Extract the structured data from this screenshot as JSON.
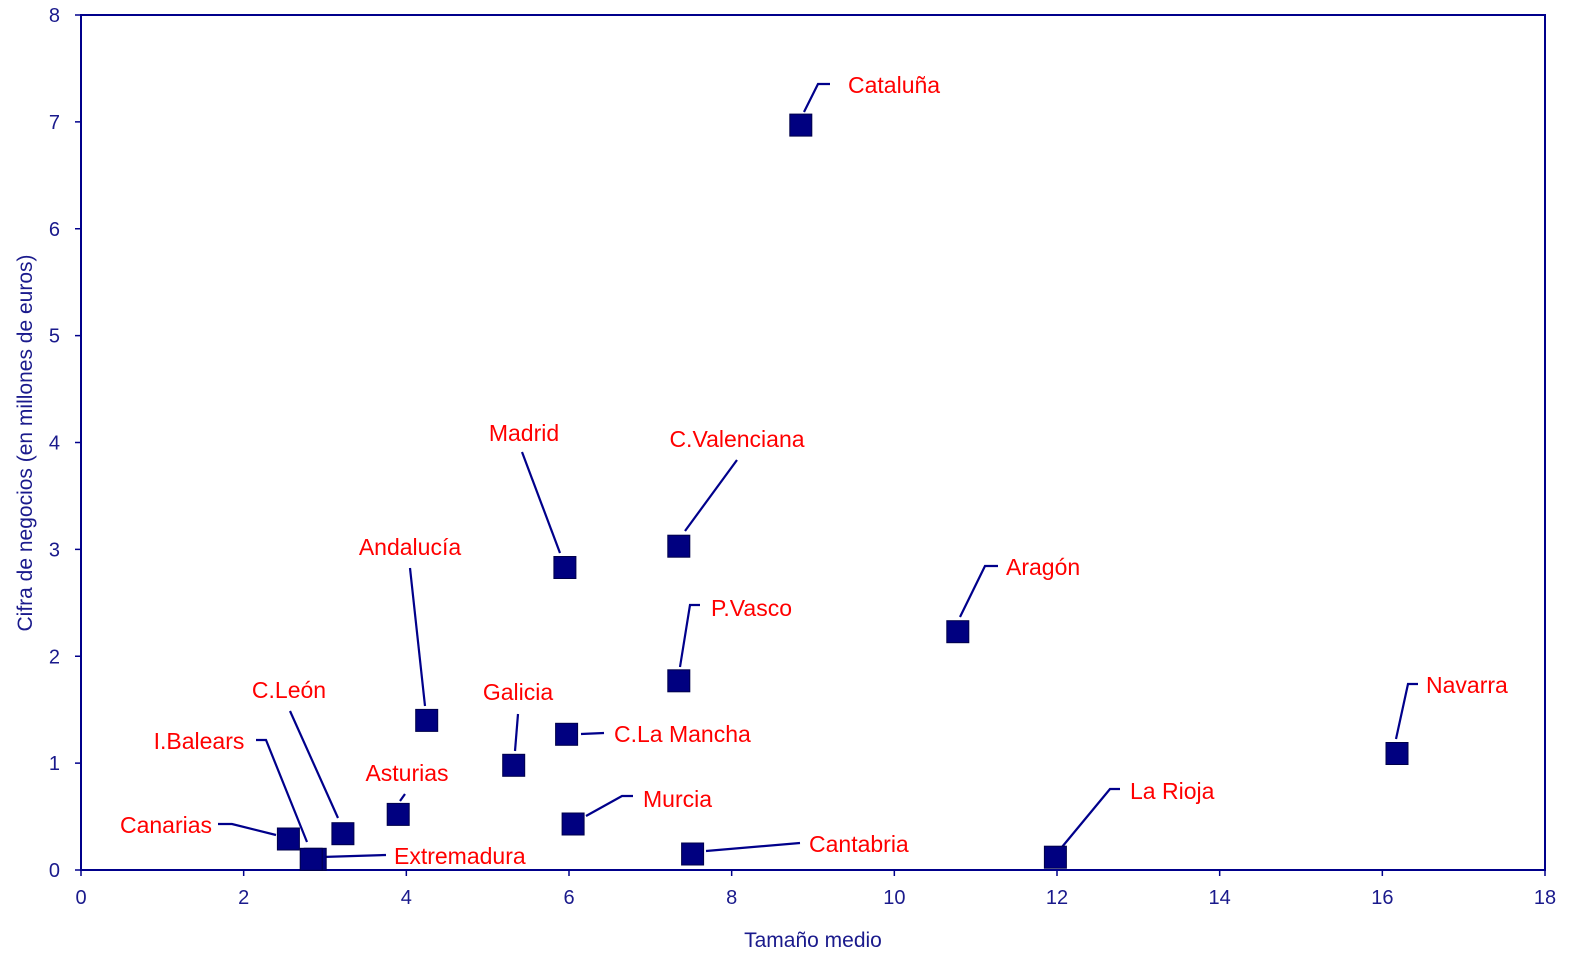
{
  "chart_data": {
    "type": "scatter",
    "title": "",
    "xlabel": "Tamaño medio",
    "ylabel": "Cifra de negocios (en millones de euros)",
    "xlim": [
      0,
      18
    ],
    "ylim": [
      0,
      8
    ],
    "xticks": [
      "0",
      "2",
      "4",
      "6",
      "8",
      "10",
      "12",
      "14",
      "16",
      "18"
    ],
    "yticks": [
      "0",
      "1",
      "2",
      "3",
      "4",
      "5",
      "6",
      "7",
      "8"
    ],
    "grid": false,
    "legend": "none",
    "colors": {
      "marker": "#000080",
      "label": "#ff0000",
      "axis": "#00008b",
      "axis_text": "#1a1a8c"
    },
    "points": [
      {
        "label": "Cataluña",
        "x": 8.85,
        "y": 6.97
      },
      {
        "label": "Madrid",
        "x": 5.95,
        "y": 2.83
      },
      {
        "label": "C.Valenciana",
        "x": 7.35,
        "y": 3.03
      },
      {
        "label": "Andalucía",
        "x": 4.25,
        "y": 1.4
      },
      {
        "label": "Aragón",
        "x": 10.78,
        "y": 2.23
      },
      {
        "label": "P.Vasco",
        "x": 7.35,
        "y": 1.77
      },
      {
        "label": "Navarra",
        "x": 16.18,
        "y": 1.09
      },
      {
        "label": "C.León",
        "x": 3.22,
        "y": 0.34
      },
      {
        "label": "Galicia",
        "x": 5.32,
        "y": 0.98
      },
      {
        "label": "C.La Mancha",
        "x": 5.97,
        "y": 1.27
      },
      {
        "label": "I.Balears",
        "x": 2.88,
        "y": 0.1
      },
      {
        "label": "Asturias",
        "x": 3.9,
        "y": 0.52
      },
      {
        "label": "Murcia",
        "x": 6.05,
        "y": 0.43
      },
      {
        "label": "La Rioja",
        "x": 11.98,
        "y": 0.12
      },
      {
        "label": "Canarias",
        "x": 2.55,
        "y": 0.29
      },
      {
        "label": "Extremadura",
        "x": 2.83,
        "y": 0.1
      },
      {
        "label": "Cantabria",
        "x": 7.52,
        "y": 0.15
      }
    ]
  }
}
